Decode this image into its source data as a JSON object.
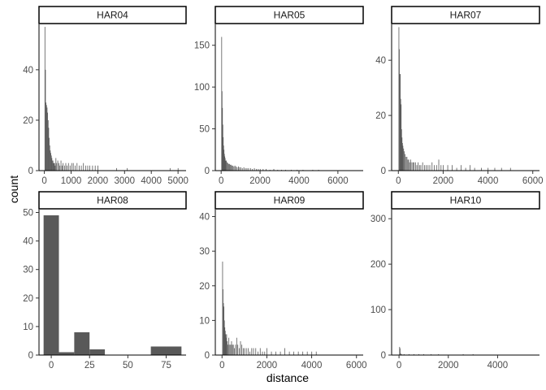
{
  "chart_data": {
    "type": "bar",
    "xlabel": "distance",
    "ylabel": "count",
    "grid": false,
    "colors": {
      "bar": "#595959",
      "axis": "#000000",
      "tick_text": "#4d4d4d",
      "strip_border": "#000000"
    },
    "panels": [
      {
        "title": "HAR04",
        "xlim": [
          -200,
          5300
        ],
        "ylim": [
          0,
          58
        ],
        "xticks": [
          0,
          1000,
          2000,
          3000,
          4000,
          5000
        ],
        "yticks": [
          0,
          20,
          40
        ],
        "binwidth": 20,
        "x": [
          20,
          40,
          60,
          80,
          100,
          120,
          140,
          160,
          180,
          200,
          220,
          240,
          260,
          280,
          300,
          320,
          340,
          360,
          380,
          400,
          430,
          460,
          500,
          540,
          580,
          620,
          660,
          700,
          750,
          800,
          850,
          900,
          960,
          1020,
          1080,
          1150,
          1220,
          1300,
          1380,
          1460,
          1540,
          1620,
          1700,
          1800,
          1900,
          2000,
          2700,
          3100,
          4700,
          5000
        ],
        "y": [
          57,
          40,
          27,
          26,
          25,
          23,
          20,
          17,
          13,
          10,
          8,
          7,
          6,
          5,
          4,
          4,
          3,
          3,
          3,
          2,
          5,
          3,
          4,
          3,
          2,
          4,
          2,
          3,
          2,
          3,
          2,
          3,
          2,
          3,
          3,
          2,
          3,
          2,
          2,
          3,
          2,
          2,
          2,
          2,
          2,
          2,
          1,
          1,
          1,
          1
        ]
      },
      {
        "title": "HAR05",
        "xlim": [
          -300,
          7300
        ],
        "ylim": [
          0,
          175
        ],
        "xticks": [
          0,
          2000,
          4000,
          6000
        ],
        "yticks": [
          0,
          50,
          100,
          150
        ],
        "binwidth": 20,
        "x": [
          20,
          40,
          60,
          80,
          100,
          120,
          140,
          160,
          180,
          200,
          230,
          260,
          300,
          340,
          380,
          420,
          460,
          500,
          550,
          600,
          650,
          700,
          760,
          820,
          880,
          940,
          1000,
          1080,
          1160,
          1240,
          1320,
          1400,
          1500,
          1600,
          1700,
          1800,
          1900,
          2000,
          2150,
          2300,
          2500,
          2700,
          2900,
          3100,
          3300,
          3600,
          3900,
          4200,
          4700,
          5000
        ],
        "y": [
          160,
          95,
          75,
          55,
          40,
          30,
          25,
          20,
          17,
          15,
          12,
          12,
          10,
          9,
          8,
          8,
          7,
          7,
          6,
          6,
          5,
          6,
          5,
          4,
          5,
          4,
          4,
          3,
          4,
          3,
          3,
          3,
          3,
          2,
          3,
          2,
          2,
          2,
          2,
          2,
          1,
          2,
          1,
          1,
          1,
          1,
          1,
          1,
          1,
          1
        ]
      },
      {
        "title": "HAR07",
        "xlim": [
          -300,
          6300
        ],
        "ylim": [
          0,
          53
        ],
        "xticks": [
          0,
          2000,
          4000,
          6000
        ],
        "yticks": [
          0,
          20,
          40
        ],
        "binwidth": 20,
        "x": [
          20,
          40,
          60,
          80,
          100,
          120,
          140,
          160,
          180,
          200,
          230,
          260,
          300,
          340,
          380,
          420,
          460,
          500,
          550,
          600,
          650,
          700,
          760,
          820,
          880,
          940,
          1000,
          1080,
          1160,
          1240,
          1320,
          1400,
          1500,
          1600,
          1700,
          1800,
          1900,
          2000,
          2200,
          2400,
          2600,
          2800,
          3000,
          3200,
          3400,
          3700,
          4000,
          4300,
          4600,
          5000
        ],
        "y": [
          52,
          44,
          35,
          35,
          26,
          24,
          15,
          12,
          10,
          9,
          8,
          7,
          6,
          5,
          5,
          4,
          4,
          3,
          4,
          3,
          3,
          3,
          3,
          2,
          3,
          2,
          2,
          3,
          2,
          2,
          2,
          2,
          3,
          2,
          2,
          4,
          2,
          2,
          2,
          2,
          1,
          2,
          1,
          2,
          1,
          1,
          1,
          1,
          1,
          1
        ]
      },
      {
        "title": "HAR08",
        "xlim": [
          -8,
          88
        ],
        "ylim": [
          0,
          51
        ],
        "xticks": [
          0,
          25,
          50,
          75
        ],
        "yticks": [
          0,
          10,
          20,
          30,
          40,
          50
        ],
        "binwidth": 10,
        "x": [
          0,
          10,
          20,
          30,
          70,
          80
        ],
        "y": [
          49,
          1,
          8,
          2,
          3,
          3
        ]
      },
      {
        "title": "HAR09",
        "xlim": [
          -300,
          6300
        ],
        "ylim": [
          0,
          42
        ],
        "xticks": [
          0,
          2000,
          4000,
          6000
        ],
        "yticks": [
          0,
          10,
          20,
          30,
          40
        ],
        "binwidth": 20,
        "x": [
          20,
          40,
          60,
          80,
          100,
          120,
          140,
          160,
          180,
          200,
          230,
          260,
          300,
          340,
          380,
          420,
          460,
          500,
          550,
          600,
          650,
          700,
          760,
          820,
          880,
          940,
          1000,
          1080,
          1160,
          1240,
          1320,
          1400,
          1500,
          1600,
          1700,
          1800,
          1900,
          2000,
          2200,
          2400,
          2600,
          2800,
          3000,
          3200,
          3400,
          3600,
          3800,
          4000,
          4200
        ],
        "y": [
          27,
          19,
          15,
          14,
          10,
          8,
          7,
          6,
          5,
          6,
          4,
          3,
          5,
          3,
          3,
          4,
          3,
          3,
          2,
          3,
          5,
          3,
          2,
          4,
          3,
          2,
          2,
          2,
          2,
          1,
          2,
          2,
          2,
          1,
          2,
          1,
          1,
          2,
          1,
          1,
          1,
          2,
          1,
          1,
          1,
          1,
          1,
          1,
          1
        ]
      },
      {
        "title": "HAR10",
        "xlim": [
          -300,
          5700
        ],
        "ylim": [
          0,
          320
        ],
        "xticks": [
          0,
          2000,
          4000
        ],
        "yticks": [
          0,
          100,
          200,
          300
        ],
        "binwidth": 20,
        "x": [
          20,
          40,
          60,
          100,
          200,
          400,
          600,
          800,
          1000,
          1300,
          1600,
          2600,
          3000
        ],
        "y": [
          18,
          15,
          4,
          2,
          2,
          2,
          2,
          2,
          2,
          2,
          2,
          2,
          2
        ]
      }
    ]
  }
}
